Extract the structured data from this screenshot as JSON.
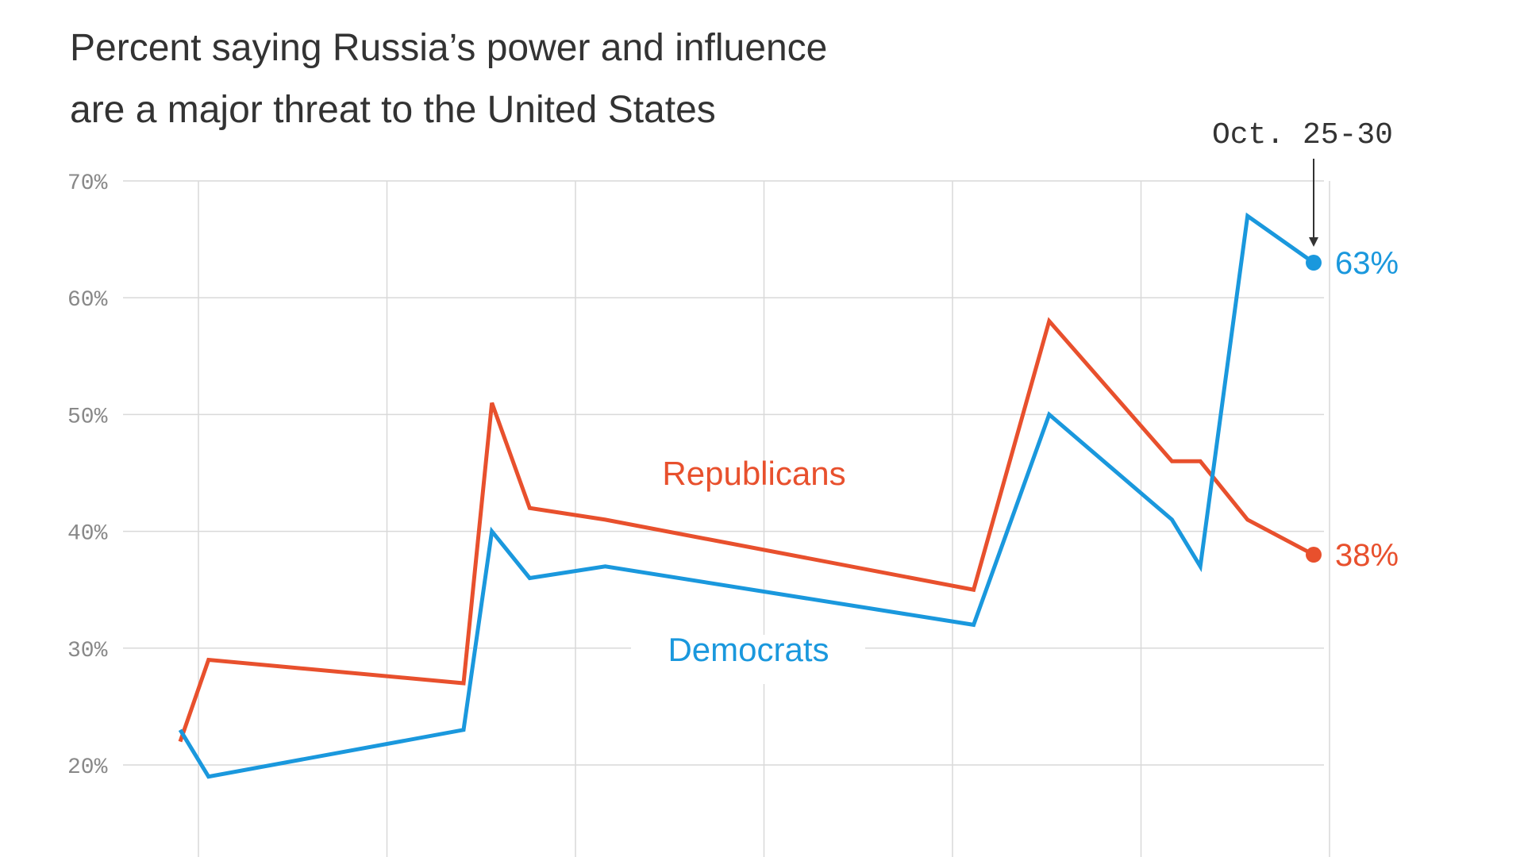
{
  "chart_data": {
    "type": "line",
    "title_lines": [
      "Percent saying Russia’s power and influence",
      "are a major threat to the United States"
    ],
    "xlabel": "",
    "ylabel": "",
    "ylim": [
      10,
      70
    ],
    "y_ticks": [
      20,
      30,
      40,
      50,
      60,
      70
    ],
    "y_tick_labels": [
      "20%",
      "30%",
      "40%",
      "50%",
      "60%",
      "70%"
    ],
    "grid": true,
    "series": [
      {
        "name": "Republicans",
        "color": "#e8502d",
        "x": [
          0.0,
          0.3,
          3.0,
          3.3,
          3.7,
          4.5,
          8.4,
          9.2,
          10.5,
          10.8,
          11.3,
          12.0
        ],
        "values": [
          22,
          29,
          27,
          51,
          42,
          41,
          35,
          58,
          46,
          46,
          41,
          38
        ],
        "end_label": "38%"
      },
      {
        "name": "Democrats",
        "color": "#1a98dd",
        "x": [
          0.0,
          0.3,
          3.0,
          3.3,
          3.7,
          4.5,
          8.4,
          9.2,
          10.5,
          10.8,
          11.3,
          12.0
        ],
        "values": [
          23,
          19,
          23,
          40,
          36,
          37,
          32,
          50,
          41,
          37,
          67,
          63
        ],
        "end_label": "63%"
      }
    ],
    "annotation": {
      "text": "Oct. 25-30"
    }
  }
}
